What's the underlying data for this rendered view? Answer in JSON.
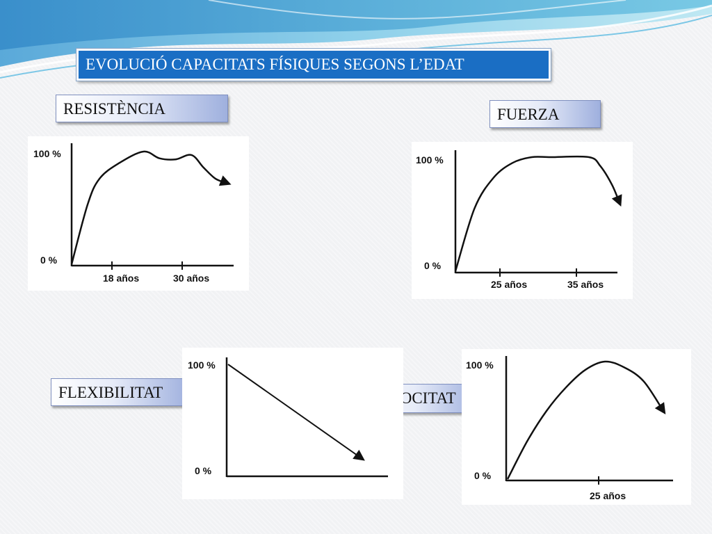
{
  "slide": {
    "title": "EVOLUCIÓ CAPACITATS FÍSIQUES SEGONS L’EDAT",
    "colors": {
      "title_bg": "#1a6ec4",
      "curve": "#111111",
      "panel": "#ffffff"
    }
  },
  "chart_data": [
    {
      "type": "line",
      "title": "RESISTÈNCIA",
      "y_tick_labels": [
        "100 %",
        "0 %"
      ],
      "x_tick_labels": [
        "18 años",
        "30 años"
      ],
      "ylim": [
        0,
        100
      ],
      "end_arrow": true,
      "series": [
        {
          "values": [
            {
              "x": 0,
              "y": 0
            },
            {
              "x": 4,
              "y": 53
            },
            {
              "x": 7,
              "y": 76
            },
            {
              "x": 12,
              "y": 90
            },
            {
              "x": 18,
              "y": 100
            },
            {
              "x": 22,
              "y": 94
            },
            {
              "x": 26,
              "y": 93
            },
            {
              "x": 30,
              "y": 97
            },
            {
              "x": 33,
              "y": 86
            },
            {
              "x": 36,
              "y": 76
            },
            {
              "x": 39,
              "y": 72
            }
          ]
        }
      ]
    },
    {
      "type": "line",
      "title": "FUERZA",
      "y_tick_labels": [
        "100 %",
        "0 %"
      ],
      "x_tick_labels": [
        "25 años",
        "35 años"
      ],
      "ylim": [
        0,
        100
      ],
      "end_arrow": true,
      "series": [
        {
          "values": [
            {
              "x": 0,
              "y": 0
            },
            {
              "x": 5,
              "y": 55
            },
            {
              "x": 10,
              "y": 82
            },
            {
              "x": 15,
              "y": 95
            },
            {
              "x": 20,
              "y": 100
            },
            {
              "x": 25,
              "y": 100
            },
            {
              "x": 35,
              "y": 100
            },
            {
              "x": 38,
              "y": 92
            },
            {
              "x": 41,
              "y": 76
            },
            {
              "x": 43,
              "y": 60
            }
          ]
        }
      ]
    },
    {
      "type": "line",
      "title": "FLEXIBILITAT",
      "y_tick_labels": [
        "100 %",
        "0 %"
      ],
      "x_tick_labels": [],
      "ylim": [
        0,
        100
      ],
      "end_arrow": true,
      "series": [
        {
          "values": [
            {
              "x": 0,
              "y": 100
            },
            {
              "x": 100,
              "y": 15
            }
          ]
        }
      ]
    },
    {
      "type": "line",
      "title": "VELOCITAT",
      "y_tick_labels": [
        "100 %",
        "0 %"
      ],
      "x_tick_labels": [
        "25 años"
      ],
      "ylim": [
        0,
        100
      ],
      "end_arrow": true,
      "series": [
        {
          "values": [
            {
              "x": 0,
              "y": 0
            },
            {
              "x": 5,
              "y": 32
            },
            {
              "x": 10,
              "y": 58
            },
            {
              "x": 15,
              "y": 78
            },
            {
              "x": 20,
              "y": 93
            },
            {
              "x": 25,
              "y": 100
            },
            {
              "x": 30,
              "y": 95
            },
            {
              "x": 35,
              "y": 83
            },
            {
              "x": 40,
              "y": 58
            }
          ]
        }
      ]
    }
  ]
}
